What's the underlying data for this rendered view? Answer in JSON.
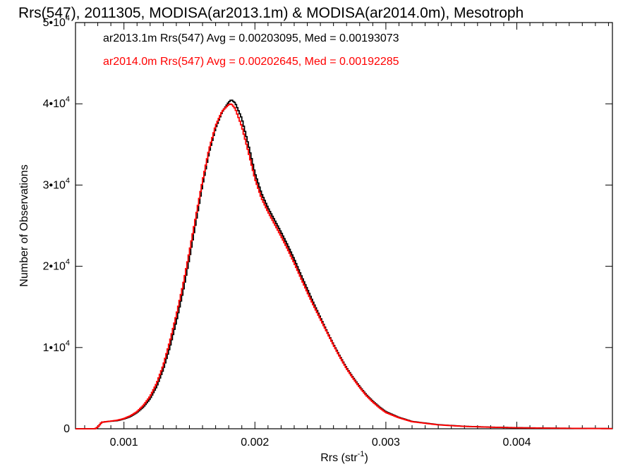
{
  "chart_data": {
    "type": "histogram",
    "title": "Rrs(547), 2011305, MODISA(ar2013.1m) & MODISA(ar2014.0m), Mesotroph",
    "xlabel": "Rrs (str",
    "xlabel_superscript": "-1",
    "xlabel_suffix": ")",
    "ylabel": "Number of Observations",
    "xlim": [
      0.00063,
      0.00473
    ],
    "ylim": [
      0,
      50000
    ],
    "x_ticks": [
      {
        "value": 0.001,
        "label": "0.001"
      },
      {
        "value": 0.002,
        "label": "0.002"
      },
      {
        "value": 0.003,
        "label": "0.003"
      },
      {
        "value": 0.004,
        "label": "0.004"
      }
    ],
    "y_ticks": [
      {
        "value": 0,
        "mantissa": "0",
        "exp": ""
      },
      {
        "value": 10000,
        "mantissa": "1•10",
        "exp": "4"
      },
      {
        "value": 20000,
        "mantissa": "2•10",
        "exp": "4"
      },
      {
        "value": 30000,
        "mantissa": "3•10",
        "exp": "4"
      },
      {
        "value": 40000,
        "mantissa": "4•10",
        "exp": "4"
      },
      {
        "value": 50000,
        "mantissa": "5•10",
        "exp": "4"
      }
    ],
    "grid": false,
    "series": [
      {
        "name": "ar2013.1m Rrs(547) Avg = 0.00203095, Med = 0.00193073",
        "color": "#000000",
        "points": [
          [
            0.00063,
            0
          ],
          [
            0.00078,
            0
          ],
          [
            0.0008,
            200
          ],
          [
            0.00083,
            800
          ],
          [
            0.00088,
            900
          ],
          [
            0.00095,
            1000
          ],
          [
            0.001,
            1200
          ],
          [
            0.00105,
            1500
          ],
          [
            0.0011,
            2000
          ],
          [
            0.00115,
            2700
          ],
          [
            0.0012,
            3700
          ],
          [
            0.00125,
            5200
          ],
          [
            0.0013,
            7300
          ],
          [
            0.00135,
            10000
          ],
          [
            0.0014,
            13200
          ],
          [
            0.00145,
            16800
          ],
          [
            0.0015,
            21000
          ],
          [
            0.00155,
            25500
          ],
          [
            0.0016,
            30000
          ],
          [
            0.00165,
            34000
          ],
          [
            0.0017,
            37000
          ],
          [
            0.00175,
            39000
          ],
          [
            0.0018,
            40200
          ],
          [
            0.00182,
            40500
          ],
          [
            0.00185,
            40100
          ],
          [
            0.0019,
            38200
          ],
          [
            0.00195,
            35000
          ],
          [
            0.002,
            31500
          ],
          [
            0.00205,
            29000
          ],
          [
            0.0021,
            27200
          ],
          [
            0.00215,
            25700
          ],
          [
            0.0022,
            24200
          ],
          [
            0.00225,
            22600
          ],
          [
            0.0023,
            20900
          ],
          [
            0.00235,
            19000
          ],
          [
            0.0024,
            17200
          ],
          [
            0.00245,
            15400
          ],
          [
            0.0025,
            13700
          ],
          [
            0.00255,
            12000
          ],
          [
            0.0026,
            10400
          ],
          [
            0.00265,
            8900
          ],
          [
            0.0027,
            7500
          ],
          [
            0.00275,
            6300
          ],
          [
            0.0028,
            5200
          ],
          [
            0.00285,
            4200
          ],
          [
            0.0029,
            3400
          ],
          [
            0.00295,
            2700
          ],
          [
            0.003,
            2100
          ],
          [
            0.0031,
            1400
          ],
          [
            0.0032,
            900
          ],
          [
            0.0034,
            500
          ],
          [
            0.0036,
            300
          ],
          [
            0.0038,
            200
          ],
          [
            0.004,
            130
          ],
          [
            0.0043,
            70
          ],
          [
            0.00473,
            20
          ]
        ]
      },
      {
        "name": "ar2014.0m Rrs(547) Avg = 0.00202645, Med = 0.00192285",
        "color": "#ff0000",
        "points": [
          [
            0.00063,
            0
          ],
          [
            0.00078,
            0
          ],
          [
            0.0008,
            200
          ],
          [
            0.00083,
            800
          ],
          [
            0.00088,
            900
          ],
          [
            0.00095,
            1050
          ],
          [
            0.001,
            1250
          ],
          [
            0.00105,
            1600
          ],
          [
            0.0011,
            2100
          ],
          [
            0.00115,
            2900
          ],
          [
            0.0012,
            4000
          ],
          [
            0.00125,
            5600
          ],
          [
            0.0013,
            7800
          ],
          [
            0.00135,
            10700
          ],
          [
            0.0014,
            14000
          ],
          [
            0.00145,
            17600
          ],
          [
            0.0015,
            21800
          ],
          [
            0.00155,
            26200
          ],
          [
            0.0016,
            30500
          ],
          [
            0.00165,
            34400
          ],
          [
            0.0017,
            37300
          ],
          [
            0.00175,
            39100
          ],
          [
            0.0018,
            39900
          ],
          [
            0.00182,
            40000
          ],
          [
            0.00185,
            39400
          ],
          [
            0.0019,
            37200
          ],
          [
            0.00195,
            34100
          ],
          [
            0.002,
            30800
          ],
          [
            0.00205,
            28400
          ],
          [
            0.0021,
            26700
          ],
          [
            0.00215,
            25200
          ],
          [
            0.0022,
            23700
          ],
          [
            0.00225,
            22100
          ],
          [
            0.0023,
            20400
          ],
          [
            0.00235,
            18600
          ],
          [
            0.0024,
            16800
          ],
          [
            0.00245,
            15100
          ],
          [
            0.0025,
            13500
          ],
          [
            0.00255,
            11900
          ],
          [
            0.0026,
            10300
          ],
          [
            0.00265,
            8800
          ],
          [
            0.0027,
            7400
          ],
          [
            0.00275,
            6200
          ],
          [
            0.0028,
            5100
          ],
          [
            0.00285,
            4100
          ],
          [
            0.0029,
            3300
          ],
          [
            0.00295,
            2600
          ],
          [
            0.003,
            2000
          ],
          [
            0.0031,
            1350
          ],
          [
            0.0032,
            870
          ],
          [
            0.0034,
            480
          ],
          [
            0.0036,
            290
          ],
          [
            0.0038,
            190
          ],
          [
            0.004,
            120
          ],
          [
            0.0043,
            65
          ],
          [
            0.00473,
            20
          ]
        ]
      }
    ]
  }
}
